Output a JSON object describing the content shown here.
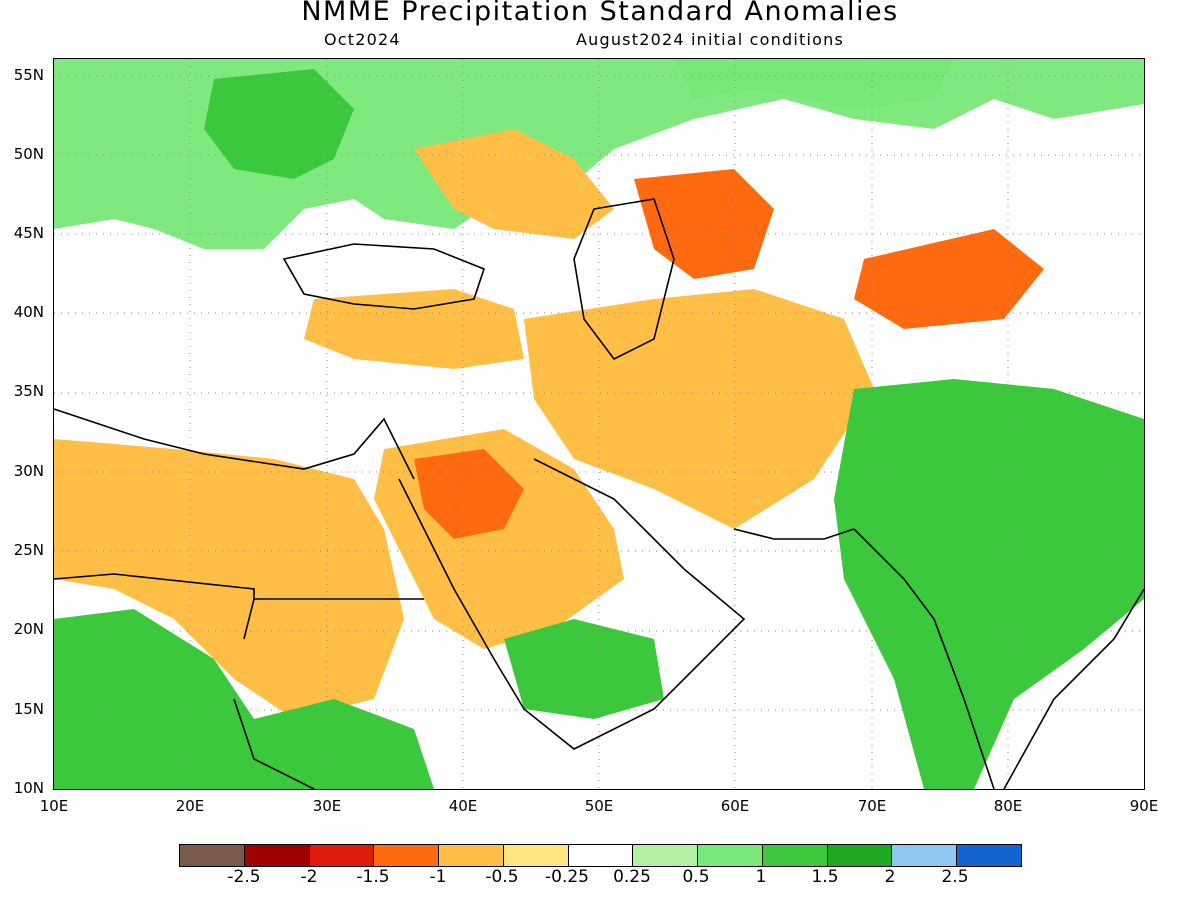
{
  "header": {
    "title": "NMME Precipitation Standard Anomalies",
    "target_month": "Oct2024",
    "initial_conditions": "August2024 initial conditions"
  },
  "axes": {
    "lat_labels": [
      "55N",
      "50N",
      "45N",
      "40N",
      "35N",
      "30N",
      "25N",
      "20N",
      "15N",
      "10N"
    ],
    "lon_labels": [
      "10E",
      "20E",
      "30E",
      "40E",
      "50E",
      "60E",
      "70E",
      "80E",
      "90E"
    ]
  },
  "colorbar": {
    "colors": [
      "#7a5a4a",
      "#a00000",
      "#e01c0c",
      "#ff6a10",
      "#ffbe46",
      "#ffe680",
      "#ffffff",
      "#b4f0a4",
      "#78e878",
      "#3cc83c",
      "#20a820",
      "#8ec8f0",
      "#1464d2"
    ],
    "labels": [
      "-2.5",
      "-2",
      "-1.5",
      "-1",
      "-0.5",
      "-0.25",
      "0.25",
      "0.5",
      "1",
      "1.5",
      "2",
      "2.5"
    ]
  },
  "map_regions": [
    {
      "name": "europe-wet",
      "color": "#78e878"
    },
    {
      "name": "ukraine-wet",
      "color": "#3cc83c"
    },
    {
      "name": "russia-steppe-dry",
      "color": "#ffbe46"
    },
    {
      "name": "caspian-north-dry",
      "color": "#ff6a10"
    },
    {
      "name": "turkey-dry",
      "color": "#ffbe46"
    },
    {
      "name": "iran-afghan-dry",
      "color": "#ffbe46"
    },
    {
      "name": "arabia-dry",
      "color": "#ffbe46"
    },
    {
      "name": "arabia-core-dry",
      "color": "#ff6a10"
    },
    {
      "name": "north-africa-dry",
      "color": "#ffbe46"
    },
    {
      "name": "india-wet",
      "color": "#3cc83c"
    },
    {
      "name": "yemen-wet",
      "color": "#3cc83c"
    },
    {
      "name": "east-africa-wet",
      "color": "#3cc83c"
    },
    {
      "name": "tien-shan-dry",
      "color": "#ff6a10"
    },
    {
      "name": "siberia-wet",
      "color": "#78e878"
    }
  ]
}
